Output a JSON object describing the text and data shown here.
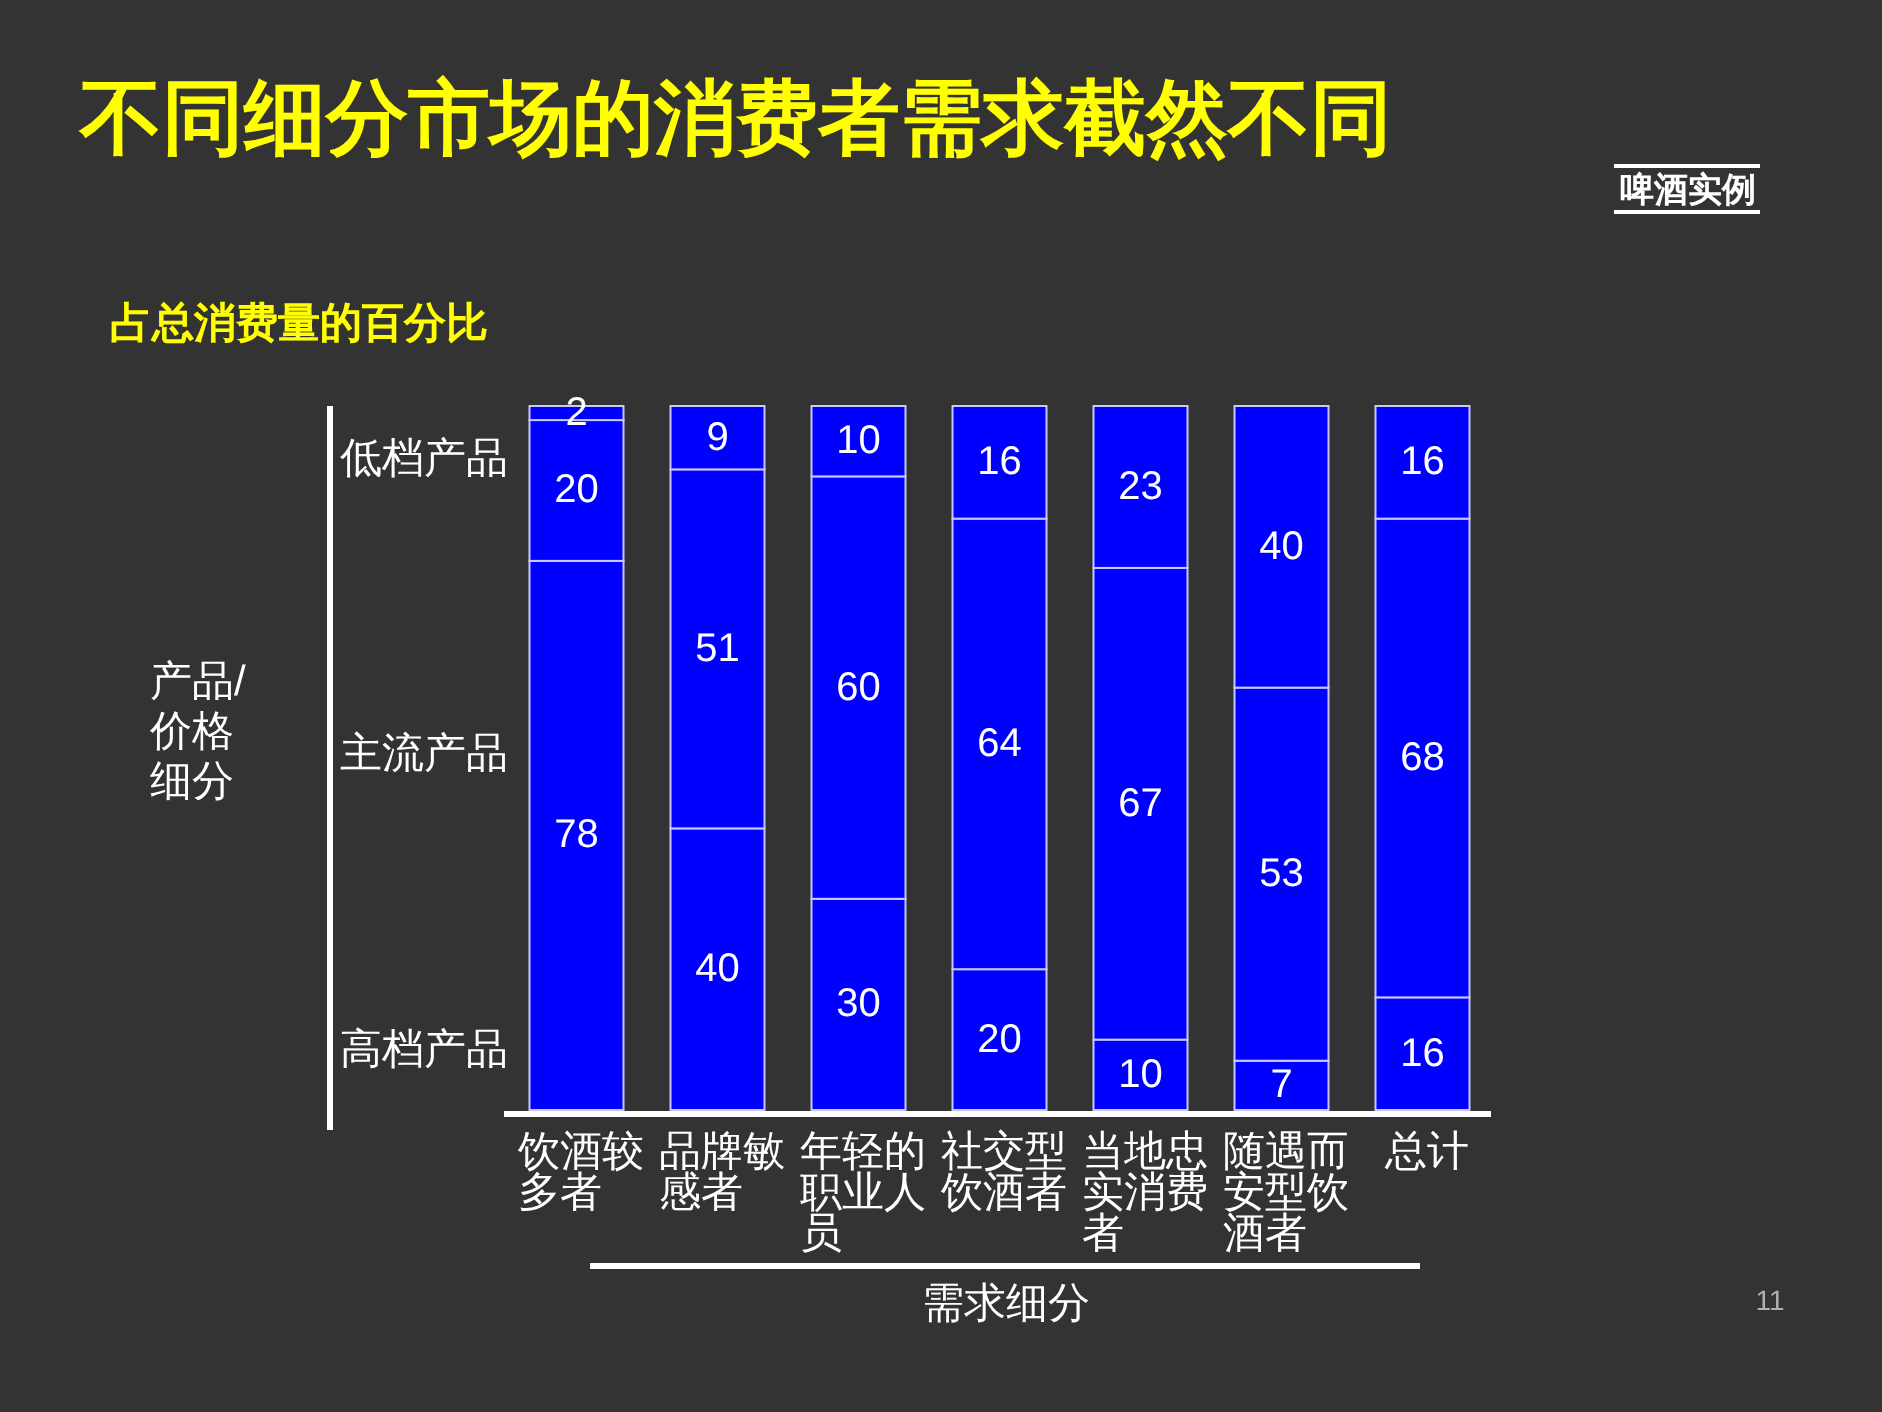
{
  "chart_data": {
    "type": "bar",
    "stacked": true,
    "title": "不同细分市场的消费者需求截然不同",
    "subtitle": "占总消费量的百分比",
    "xlabel": "需求细分",
    "categories": [
      "饮酒较多者",
      "品牌敏感者",
      "年轻的职业人员",
      "社交型饮酒者",
      "当地忠实消费者",
      "随遇而安型饮酒者",
      "总计"
    ],
    "series": [
      {
        "color": "#0000ff",
        "values": [
          78,
          40,
          30,
          20,
          10,
          7,
          16
        ]
      },
      {
        "color": "#0000ff",
        "values": [
          20,
          51,
          60,
          64,
          67,
          53,
          68
        ]
      },
      {
        "color": "#0000ff",
        "values": [
          2,
          9,
          10,
          16,
          23,
          40,
          16
        ]
      }
    ],
    "data_labels": true,
    "annotations": [
      "啤酒实例",
      "产品/价格细分",
      "低档产品",
      "主流产品",
      "高档产品",
      "11"
    ]
  }
}
